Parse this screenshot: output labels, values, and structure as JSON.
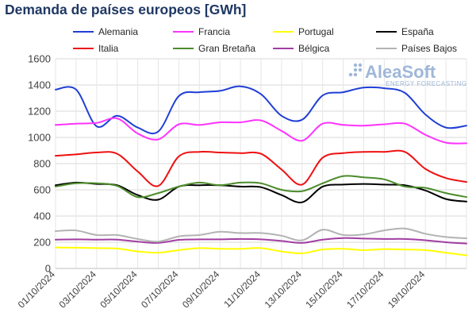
{
  "title": "Demanda de países europeos [GWh]",
  "watermark": {
    "brand": "AleaSoft",
    "tagline": "ENERGY FORECASTING"
  },
  "chart_data": {
    "type": "line",
    "title": "Demanda de países europeos [GWh]",
    "xlabel": "",
    "ylabel": "",
    "ylim": [
      0,
      1600
    ],
    "yticks": [
      0,
      200,
      400,
      600,
      800,
      1000,
      1200,
      1400,
      1600
    ],
    "grid": true,
    "legend_position": "top",
    "x": [
      "01/10/2024",
      "02/10/2024",
      "03/10/2024",
      "04/10/2024",
      "05/10/2024",
      "06/10/2024",
      "07/10/2024",
      "08/10/2024",
      "09/10/2024",
      "10/10/2024",
      "11/10/2024",
      "12/10/2024",
      "13/10/2024",
      "14/10/2024",
      "15/10/2024",
      "16/10/2024",
      "17/10/2024",
      "18/10/2024",
      "19/10/2024",
      "20/10/2024",
      "21/10/2024"
    ],
    "xtick_labels": [
      "01/10/2024",
      "03/10/2024",
      "05/10/2024",
      "07/10/2024",
      "09/10/2024",
      "11/10/2024",
      "13/10/2024",
      "15/10/2024",
      "17/10/2024",
      "19/10/2024"
    ],
    "series": [
      {
        "name": "Alemania",
        "color": "#1f3fd6",
        "values": [
          1365,
          1365,
          1085,
          1165,
          1075,
          1045,
          1315,
          1345,
          1355,
          1390,
          1330,
          1165,
          1135,
          1320,
          1345,
          1380,
          1375,
          1340,
          1175,
          1075,
          1090
        ]
      },
      {
        "name": "Francia",
        "color": "#ff33ff",
        "values": [
          1095,
          1105,
          1110,
          1145,
          1030,
          985,
          1100,
          1095,
          1115,
          1115,
          1130,
          1050,
          975,
          1105,
          1095,
          1090,
          1100,
          1105,
          1020,
          960,
          955
        ]
      },
      {
        "name": "Portugal",
        "color": "#ffff00",
        "values": [
          160,
          158,
          155,
          152,
          130,
          120,
          140,
          155,
          150,
          150,
          155,
          130,
          115,
          145,
          150,
          140,
          148,
          145,
          140,
          120,
          100
        ]
      },
      {
        "name": "España",
        "color": "#000000",
        "values": [
          635,
          655,
          645,
          635,
          560,
          525,
          625,
          635,
          635,
          625,
          620,
          560,
          505,
          625,
          640,
          645,
          640,
          635,
          595,
          530,
          510
        ]
      },
      {
        "name": "Italia",
        "color": "#ee1111",
        "values": [
          860,
          870,
          885,
          875,
          740,
          630,
          855,
          890,
          885,
          880,
          875,
          755,
          640,
          845,
          880,
          890,
          890,
          890,
          760,
          690,
          660
        ]
      },
      {
        "name": "Gran Bretaña",
        "color": "#4c8c2b",
        "values": [
          625,
          650,
          650,
          630,
          545,
          575,
          625,
          655,
          635,
          655,
          650,
          600,
          590,
          650,
          705,
          695,
          680,
          625,
          615,
          575,
          545
        ]
      },
      {
        "name": "Bélgica",
        "color": "#a13ea1",
        "values": [
          220,
          222,
          220,
          220,
          205,
          195,
          218,
          222,
          222,
          225,
          222,
          210,
          195,
          220,
          232,
          228,
          225,
          225,
          215,
          200,
          190
        ]
      },
      {
        "name": "Países Bajos",
        "color": "#b3b3b3",
        "values": [
          285,
          290,
          255,
          255,
          225,
          205,
          245,
          255,
          280,
          270,
          270,
          250,
          215,
          295,
          255,
          260,
          290,
          305,
          265,
          240,
          230
        ]
      }
    ]
  }
}
